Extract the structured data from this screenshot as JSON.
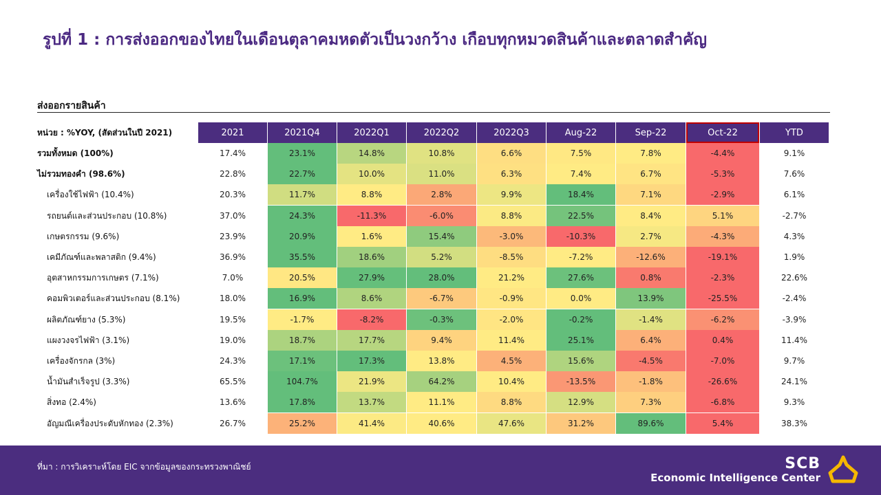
{
  "title": "รูปที่ 1 : การส่งออกของไทยในเดือนตุลาคมหดตัวเป็นวงกว้าง  เกือบทุกหมวดสินค้าและตลาดสำคัญ",
  "section_title": "ส่งออกรายสินค้า",
  "unit_label": "หน่วย : %YOY, (สัดส่วนในปี 2021)",
  "source": "ที่มา : การวิเคราะห์โดย  EIC  จากข้อมูลของกระทรวงพาณิชย์",
  "brand": {
    "name": "SCB",
    "subtitle": "Economic Intelligence Center",
    "color": "#f5b800"
  },
  "colors": {
    "header": "#4b2d7f",
    "title": "#4b2982",
    "highlight_border": "#c00000",
    "scale_low": "#f8696b",
    "scale_mid": "#ffeb84",
    "scale_high": "#63be7b"
  },
  "chart_data": {
    "type": "heatmap",
    "columns": [
      "2021",
      "2021Q4",
      "2022Q1",
      "2022Q2",
      "2022Q3",
      "Aug-22",
      "Sep-22",
      "Oct-22",
      "YTD"
    ],
    "colored_columns": [
      "2021Q4",
      "2022Q1",
      "2022Q2",
      "2022Q3",
      "Aug-22",
      "Sep-22",
      "Oct-22"
    ],
    "highlighted_column": "Oct-22",
    "rows": [
      {
        "label": "รวมทั้งหมด (100%)",
        "bold": true,
        "values": [
          17.4,
          23.1,
          14.8,
          10.8,
          6.6,
          7.5,
          7.8,
          -4.4,
          9.1
        ]
      },
      {
        "label": "ไม่รวมทองคำ (98.6%)",
        "bold": true,
        "values": [
          22.8,
          22.7,
          10.0,
          11.0,
          6.3,
          7.4,
          6.7,
          -5.3,
          7.6
        ]
      },
      {
        "label": "เครื่องใช้ไฟฟ้า (10.4%)",
        "values": [
          20.3,
          11.7,
          8.8,
          2.8,
          9.9,
          18.4,
          7.1,
          -2.9,
          6.1
        ]
      },
      {
        "label": "รถยนต์และส่วนประกอบ (10.8%)",
        "values": [
          37.0,
          24.3,
          -11.3,
          -6.0,
          8.8,
          22.5,
          8.4,
          5.1,
          -2.7
        ]
      },
      {
        "label": "เกษตรกรรม (9.6%)",
        "values": [
          23.9,
          20.9,
          1.6,
          15.4,
          -3.0,
          -10.3,
          2.7,
          -4.3,
          4.3
        ]
      },
      {
        "label": "เคมีภัณฑ์และพลาสติก (9.4%)",
        "values": [
          36.9,
          35.5,
          18.6,
          5.2,
          -8.5,
          -7.2,
          -12.6,
          -19.1,
          1.9
        ]
      },
      {
        "label": "อุตสาหกรรมการเกษตร (7.1%)",
        "values": [
          7.0,
          20.5,
          27.9,
          28.0,
          21.2,
          27.6,
          0.8,
          -2.3,
          22.6
        ]
      },
      {
        "label": "คอมพิวเตอร์และส่วนประกอบ (8.1%)",
        "values": [
          18.0,
          16.9,
          8.6,
          -6.7,
          -0.9,
          0.0,
          13.9,
          -25.5,
          -2.4
        ]
      },
      {
        "label": "ผลิตภัณฑ์ยาง (5.3%)",
        "values": [
          19.5,
          -1.7,
          -8.2,
          -0.3,
          -2.0,
          -0.2,
          -1.4,
          -6.2,
          -3.9
        ]
      },
      {
        "label": "แผงวงจรไฟฟ้า (3.1%)",
        "values": [
          19.0,
          18.7,
          17.7,
          9.4,
          11.4,
          25.1,
          6.4,
          0.4,
          11.4
        ]
      },
      {
        "label": "เครื่องจักรกล (3%)",
        "values": [
          24.3,
          17.1,
          17.3,
          13.8,
          4.5,
          15.6,
          -4.5,
          -7.0,
          9.7
        ]
      },
      {
        "label": "น้ำมันสำเร็จรูป (3.3%)",
        "values": [
          65.5,
          104.7,
          21.9,
          64.2,
          10.4,
          -13.5,
          -1.8,
          -26.6,
          24.1
        ]
      },
      {
        "label": "สิ่งทอ (2.4%)",
        "values": [
          13.6,
          17.8,
          13.7,
          11.1,
          8.8,
          12.9,
          7.3,
          -6.8,
          9.3
        ]
      },
      {
        "label": "อัญมณีเครื่องประดับหักทอง (2.3%)",
        "values": [
          26.7,
          25.2,
          41.4,
          40.6,
          47.6,
          31.2,
          89.6,
          5.4,
          38.3
        ]
      }
    ]
  }
}
